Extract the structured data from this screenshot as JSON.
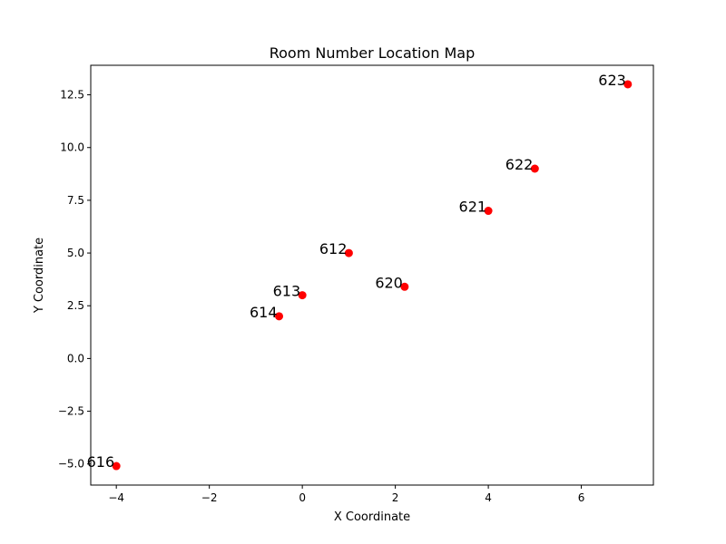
{
  "chart_data": {
    "type": "scatter",
    "title": "Room Number Location Map",
    "xlabel": "X Coordinate",
    "ylabel": "Y Coordinate",
    "xlim": [
      -4.55,
      7.55
    ],
    "ylim": [
      -6.0,
      13.9
    ],
    "xticks": [
      -4,
      -2,
      0,
      2,
      4,
      6
    ],
    "xtick_labels": [
      "−4",
      "−2",
      "0",
      "2",
      "4",
      "6"
    ],
    "yticks": [
      -5.0,
      -2.5,
      0.0,
      2.5,
      5.0,
      7.5,
      10.0,
      12.5
    ],
    "ytick_labels": [
      "−5.0",
      "−2.5",
      "0.0",
      "2.5",
      "5.0",
      "7.5",
      "10.0",
      "12.5"
    ],
    "grid": false,
    "marker_color": "#ff0000",
    "points": [
      {
        "label": "612",
        "x": 1.0,
        "y": 5.0
      },
      {
        "label": "613",
        "x": 0.0,
        "y": 3.0
      },
      {
        "label": "614",
        "x": -0.5,
        "y": 2.0
      },
      {
        "label": "616",
        "x": -4.0,
        "y": -5.1
      },
      {
        "label": "620",
        "x": 2.2,
        "y": 3.4
      },
      {
        "label": "621",
        "x": 4.0,
        "y": 7.0
      },
      {
        "label": "622",
        "x": 5.0,
        "y": 9.0
      },
      {
        "label": "623",
        "x": 7.0,
        "y": 13.0
      }
    ]
  }
}
